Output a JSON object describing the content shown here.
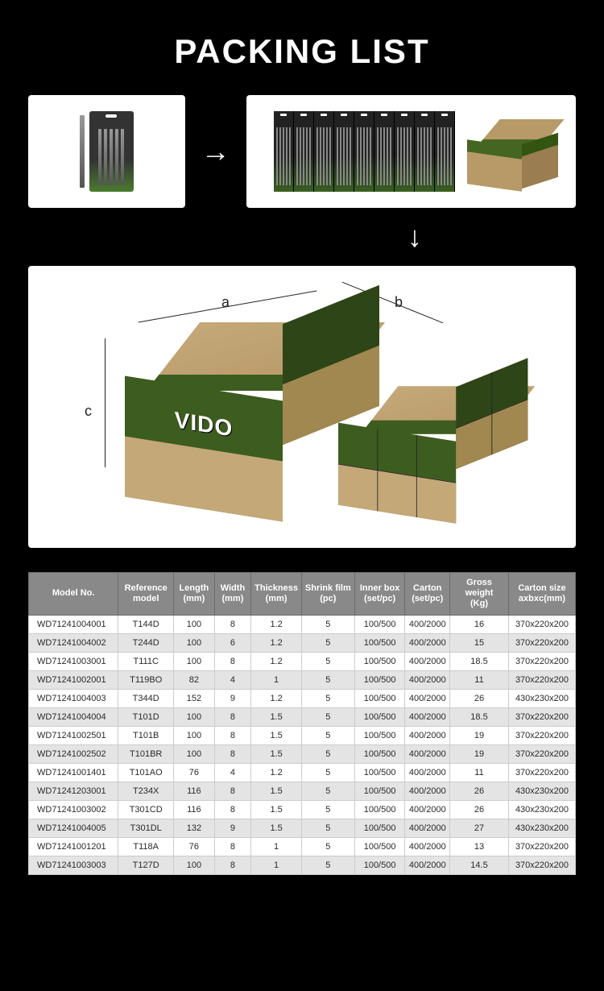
{
  "title": "PACKING LIST",
  "brand": "VIDO",
  "dimensions": {
    "a": "a",
    "b": "b",
    "c": "c"
  },
  "table": {
    "columns": [
      "Model No.",
      "Reference model",
      "Length (mm)",
      "Width (mm)",
      "Thickness (mm)",
      "Shrink film (pc)",
      "Inner box (set/pc)",
      "Carton (set/pc)",
      "Gross weight (Kg)",
      "Carton size axbxc(mm)"
    ],
    "rows": [
      [
        "WD71241004001",
        "T144D",
        "100",
        "8",
        "1.2",
        "5",
        "100/500",
        "400/2000",
        "16",
        "370x220x200"
      ],
      [
        "WD71241004002",
        "T244D",
        "100",
        "6",
        "1.2",
        "5",
        "100/500",
        "400/2000",
        "15",
        "370x220x200"
      ],
      [
        "WD71241003001",
        "T111C",
        "100",
        "8",
        "1.2",
        "5",
        "100/500",
        "400/2000",
        "18.5",
        "370x220x200"
      ],
      [
        "WD71241002001",
        "T119BO",
        "82",
        "4",
        "1",
        "5",
        "100/500",
        "400/2000",
        "11",
        "370x220x200"
      ],
      [
        "WD71241004003",
        "T344D",
        "152",
        "9",
        "1.2",
        "5",
        "100/500",
        "400/2000",
        "26",
        "430x230x200"
      ],
      [
        "WD71241004004",
        "T101D",
        "100",
        "8",
        "1.5",
        "5",
        "100/500",
        "400/2000",
        "18.5",
        "370x220x200"
      ],
      [
        "WD71241002501",
        "T101B",
        "100",
        "8",
        "1.5",
        "5",
        "100/500",
        "400/2000",
        "19",
        "370x220x200"
      ],
      [
        "WD71241002502",
        "T101BR",
        "100",
        "8",
        "1.5",
        "5",
        "100/500",
        "400/2000",
        "19",
        "370x220x200"
      ],
      [
        "WD71241001401",
        "T101AO",
        "76",
        "4",
        "1.2",
        "5",
        "100/500",
        "400/2000",
        "11",
        "370x220x200"
      ],
      [
        "WD71241203001",
        "T234X",
        "116",
        "8",
        "1.5",
        "5",
        "100/500",
        "400/2000",
        "26",
        "430x230x200"
      ],
      [
        "WD71241003002",
        "T301CD",
        "116",
        "8",
        "1.5",
        "5",
        "100/500",
        "400/2000",
        "26",
        "430x230x200"
      ],
      [
        "WD71241004005",
        "T301DL",
        "132",
        "9",
        "1.5",
        "5",
        "100/500",
        "400/2000",
        "27",
        "430x230x200"
      ],
      [
        "WD71241001201",
        "T118A",
        "76",
        "8",
        "1",
        "5",
        "100/500",
        "400/2000",
        "13",
        "370x220x200"
      ],
      [
        "WD71241003003",
        "T127D",
        "100",
        "8",
        "1",
        "5",
        "100/500",
        "400/2000",
        "14.5",
        "370x220x200"
      ]
    ]
  },
  "colors": {
    "background": "#000000",
    "panel": "#ffffff",
    "header_bg": "#898989",
    "row_alt": "#e4e4e4",
    "carton": "#b89968",
    "brand_green": "#3d5c1f"
  }
}
